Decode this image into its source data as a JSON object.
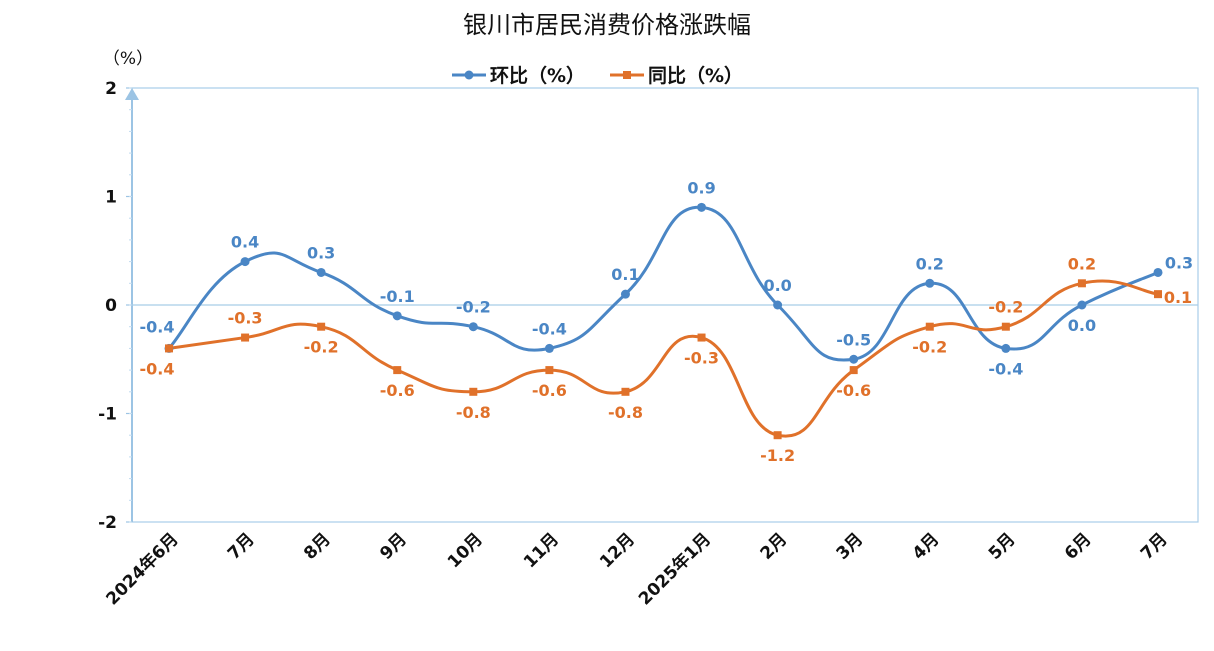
{
  "chart_data": {
    "type": "line",
    "title": "银川市居民消费价格涨跌幅",
    "yunit": "（%）",
    "ylim": [
      -2,
      2
    ],
    "yticks": [
      "2",
      "1",
      "0",
      "-1",
      "-2"
    ],
    "ytick_values": [
      2,
      1,
      0,
      -1,
      -2
    ],
    "categories": [
      "2024年6月",
      "7月",
      "8月",
      "9月",
      "10月",
      "11月",
      "12月",
      "2025年1月",
      "2月",
      "3月",
      "4月",
      "5月",
      "6月",
      "7月"
    ],
    "series": [
      {
        "name": "环比（%）",
        "color": "#4a86c5",
        "values": [
          -0.4,
          0.4,
          0.3,
          -0.1,
          -0.2,
          -0.4,
          0.1,
          0.9,
          0.0,
          -0.5,
          0.2,
          -0.4,
          0.0,
          0.3
        ],
        "labels": [
          "-0.4",
          "0.4",
          "0.3",
          "-0.1",
          "-0.2",
          "-0.4",
          "0.1",
          "0.9",
          "0.0",
          "-0.5",
          "0.2",
          "-0.4",
          "0.0",
          "0.3"
        ]
      },
      {
        "name": "同比（%）",
        "color": "#e0712a",
        "values": [
          -0.4,
          -0.3,
          -0.2,
          -0.6,
          -0.8,
          -0.6,
          -0.8,
          -0.3,
          -1.2,
          -0.6,
          -0.2,
          -0.2,
          0.2,
          0.1
        ],
        "labels": [
          "-0.4",
          "-0.3",
          "-0.2",
          "-0.6",
          "-0.8",
          "-0.6",
          "-0.8",
          "-0.3",
          "-1.2",
          "-0.6",
          "-0.2",
          "-0.2",
          "0.2",
          "0.1"
        ]
      }
    ],
    "legend_position": "top-center",
    "grid": false
  }
}
